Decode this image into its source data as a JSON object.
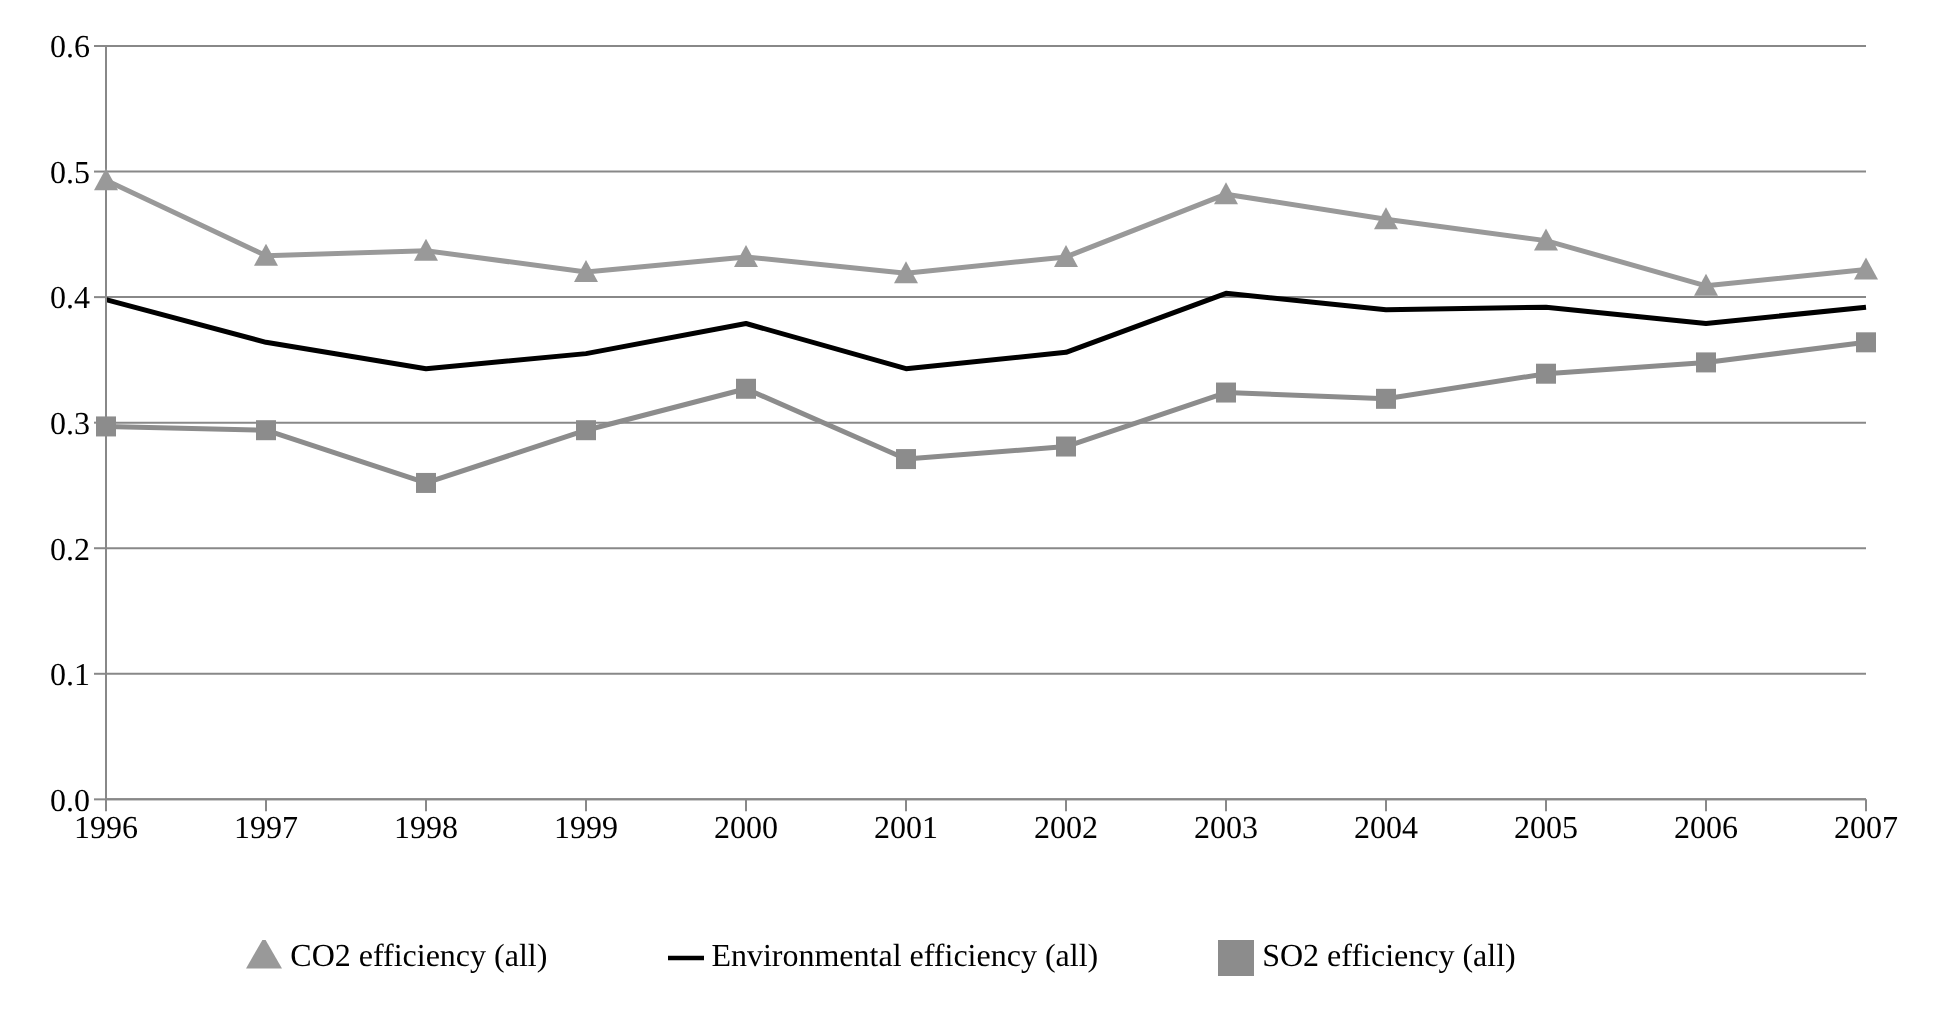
{
  "chart_data": {
    "type": "line",
    "categories": [
      "1996",
      "1997",
      "1998",
      "1999",
      "2000",
      "2001",
      "2002",
      "2003",
      "2004",
      "2005",
      "2006",
      "2007"
    ],
    "series": [
      {
        "name": "Environmental efficiency (all)",
        "color": "#000000",
        "marker": "none",
        "values": [
          0.398,
          0.364,
          0.343,
          0.355,
          0.379,
          0.343,
          0.356,
          0.403,
          0.39,
          0.392,
          0.379,
          0.392
        ]
      },
      {
        "name": "CO2 efficiency (all)",
        "color": "#999999",
        "marker": "triangle",
        "values": [
          0.493,
          0.433,
          0.437,
          0.42,
          0.432,
          0.419,
          0.432,
          0.482,
          0.462,
          0.445,
          0.409,
          0.422
        ]
      },
      {
        "name": "SO2 efficiency (all)",
        "color": "#8c8c8c",
        "marker": "square",
        "values": [
          0.297,
          0.294,
          0.252,
          0.294,
          0.327,
          0.271,
          0.281,
          0.324,
          0.319,
          0.339,
          0.348,
          0.364
        ]
      }
    ],
    "ylim": [
      0,
      0.6
    ],
    "yticks": [
      {
        "value": 0,
        "label": "0.0"
      },
      {
        "value": 0.1,
        "label": "0.1"
      },
      {
        "value": 0.2,
        "label": "0.2"
      },
      {
        "value": 0.3,
        "label": "0.3"
      },
      {
        "value": 0.4,
        "label": "0.4"
      },
      {
        "value": 0.5,
        "label": "0.5"
      },
      {
        "value": 0.6,
        "label": "0.6"
      }
    ],
    "grid": "y",
    "legend": "bottom",
    "line_style": "solid"
  }
}
